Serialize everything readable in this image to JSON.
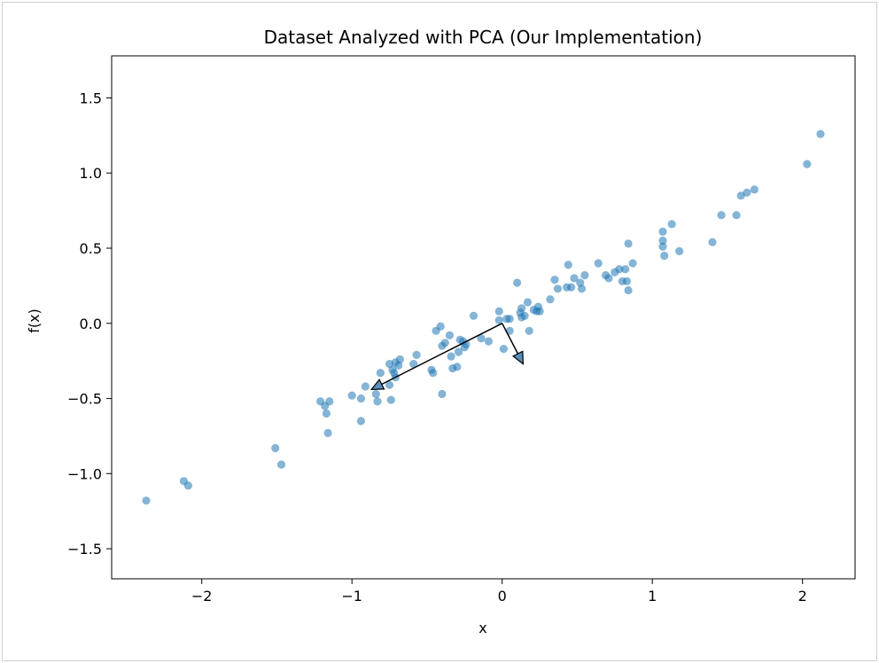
{
  "chart_data": {
    "type": "scatter",
    "title": "Dataset Analyzed with PCA (Our Implementation)",
    "xlabel": "x",
    "ylabel": "f(x)",
    "xlim": [
      -2.6,
      2.35
    ],
    "ylim": [
      -1.7,
      1.78
    ],
    "xticks": [
      -2,
      -1,
      0,
      1,
      2
    ],
    "xtick_labels": [
      "−2",
      "−1",
      "0",
      "1",
      "2"
    ],
    "yticks": [
      -1.5,
      -1.0,
      -0.5,
      0.0,
      0.5,
      1.0,
      1.5
    ],
    "ytick_labels": [
      "−1.5",
      "−1.0",
      "−0.5",
      "0.0",
      "0.5",
      "1.0",
      "1.5"
    ],
    "grid": false,
    "point_color": "#1f77b4",
    "point_alpha": 0.55,
    "arrow_color": "#000000",
    "points": [
      [
        -2.37,
        -1.18
      ],
      [
        -2.12,
        -1.05
      ],
      [
        -2.09,
        -1.08
      ],
      [
        -1.51,
        -0.83
      ],
      [
        -1.47,
        -0.94
      ],
      [
        -1.21,
        -0.52
      ],
      [
        -1.18,
        -0.55
      ],
      [
        -1.15,
        -0.52
      ],
      [
        -1.17,
        -0.6
      ],
      [
        -1.16,
        -0.73
      ],
      [
        -1.0,
        -0.48
      ],
      [
        -0.94,
        -0.5
      ],
      [
        -0.94,
        -0.65
      ],
      [
        -0.91,
        -0.42
      ],
      [
        -0.84,
        -0.47
      ],
      [
        -0.83,
        -0.52
      ],
      [
        -0.81,
        -0.33
      ],
      [
        -0.75,
        -0.41
      ],
      [
        -0.74,
        -0.51
      ],
      [
        -0.75,
        -0.27
      ],
      [
        -0.73,
        -0.31
      ],
      [
        -0.72,
        -0.33
      ],
      [
        -0.71,
        -0.26
      ],
      [
        -0.69,
        -0.28
      ],
      [
        -0.68,
        -0.24
      ],
      [
        -0.71,
        -0.36
      ],
      [
        -0.59,
        -0.27
      ],
      [
        -0.57,
        -0.21
      ],
      [
        -0.47,
        -0.31
      ],
      [
        -0.46,
        -0.33
      ],
      [
        -0.44,
        -0.05
      ],
      [
        -0.41,
        -0.02
      ],
      [
        -0.4,
        -0.47
      ],
      [
        -0.4,
        -0.15
      ],
      [
        -0.38,
        -0.13
      ],
      [
        -0.35,
        -0.08
      ],
      [
        -0.34,
        -0.22
      ],
      [
        -0.33,
        -0.3
      ],
      [
        -0.3,
        -0.29
      ],
      [
        -0.29,
        -0.19
      ],
      [
        -0.28,
        -0.11
      ],
      [
        -0.26,
        -0.12
      ],
      [
        -0.25,
        -0.16
      ],
      [
        -0.24,
        -0.14
      ],
      [
        -0.19,
        0.05
      ],
      [
        -0.14,
        -0.1
      ],
      [
        -0.09,
        -0.12
      ],
      [
        -0.02,
        0.02
      ],
      [
        -0.02,
        0.08
      ],
      [
        0.01,
        -0.17
      ],
      [
        0.03,
        0.03
      ],
      [
        0.05,
        0.03
      ],
      [
        0.05,
        -0.05
      ],
      [
        0.1,
        0.27
      ],
      [
        0.12,
        0.07
      ],
      [
        0.13,
        0.1
      ],
      [
        0.13,
        0.04
      ],
      [
        0.15,
        0.05
      ],
      [
        0.17,
        0.14
      ],
      [
        0.18,
        -0.05
      ],
      [
        0.21,
        0.09
      ],
      [
        0.23,
        0.08
      ],
      [
        0.24,
        0.11
      ],
      [
        0.25,
        0.08
      ],
      [
        0.32,
        0.16
      ],
      [
        0.35,
        0.29
      ],
      [
        0.37,
        0.23
      ],
      [
        0.43,
        0.24
      ],
      [
        0.44,
        0.39
      ],
      [
        0.46,
        0.24
      ],
      [
        0.48,
        0.3
      ],
      [
        0.52,
        0.27
      ],
      [
        0.53,
        0.23
      ],
      [
        0.55,
        0.32
      ],
      [
        0.64,
        0.4
      ],
      [
        0.69,
        0.32
      ],
      [
        0.71,
        0.3
      ],
      [
        0.75,
        0.34
      ],
      [
        0.78,
        0.36
      ],
      [
        0.8,
        0.28
      ],
      [
        0.82,
        0.36
      ],
      [
        0.83,
        0.28
      ],
      [
        0.84,
        0.53
      ],
      [
        0.84,
        0.22
      ],
      [
        0.87,
        0.4
      ],
      [
        1.07,
        0.61
      ],
      [
        1.07,
        0.55
      ],
      [
        1.07,
        0.51
      ],
      [
        1.08,
        0.45
      ],
      [
        1.13,
        0.66
      ],
      [
        1.18,
        0.48
      ],
      [
        1.4,
        0.54
      ],
      [
        1.46,
        0.72
      ],
      [
        1.56,
        0.72
      ],
      [
        1.59,
        0.85
      ],
      [
        1.63,
        0.87
      ],
      [
        1.68,
        0.89
      ],
      [
        2.03,
        1.06
      ],
      [
        2.12,
        1.26
      ]
    ],
    "arrows": [
      {
        "from": [
          0.0,
          0.0
        ],
        "to": [
          -0.87,
          -0.44
        ]
      },
      {
        "from": [
          0.0,
          0.0
        ],
        "to": [
          0.14,
          -0.27
        ]
      }
    ]
  }
}
